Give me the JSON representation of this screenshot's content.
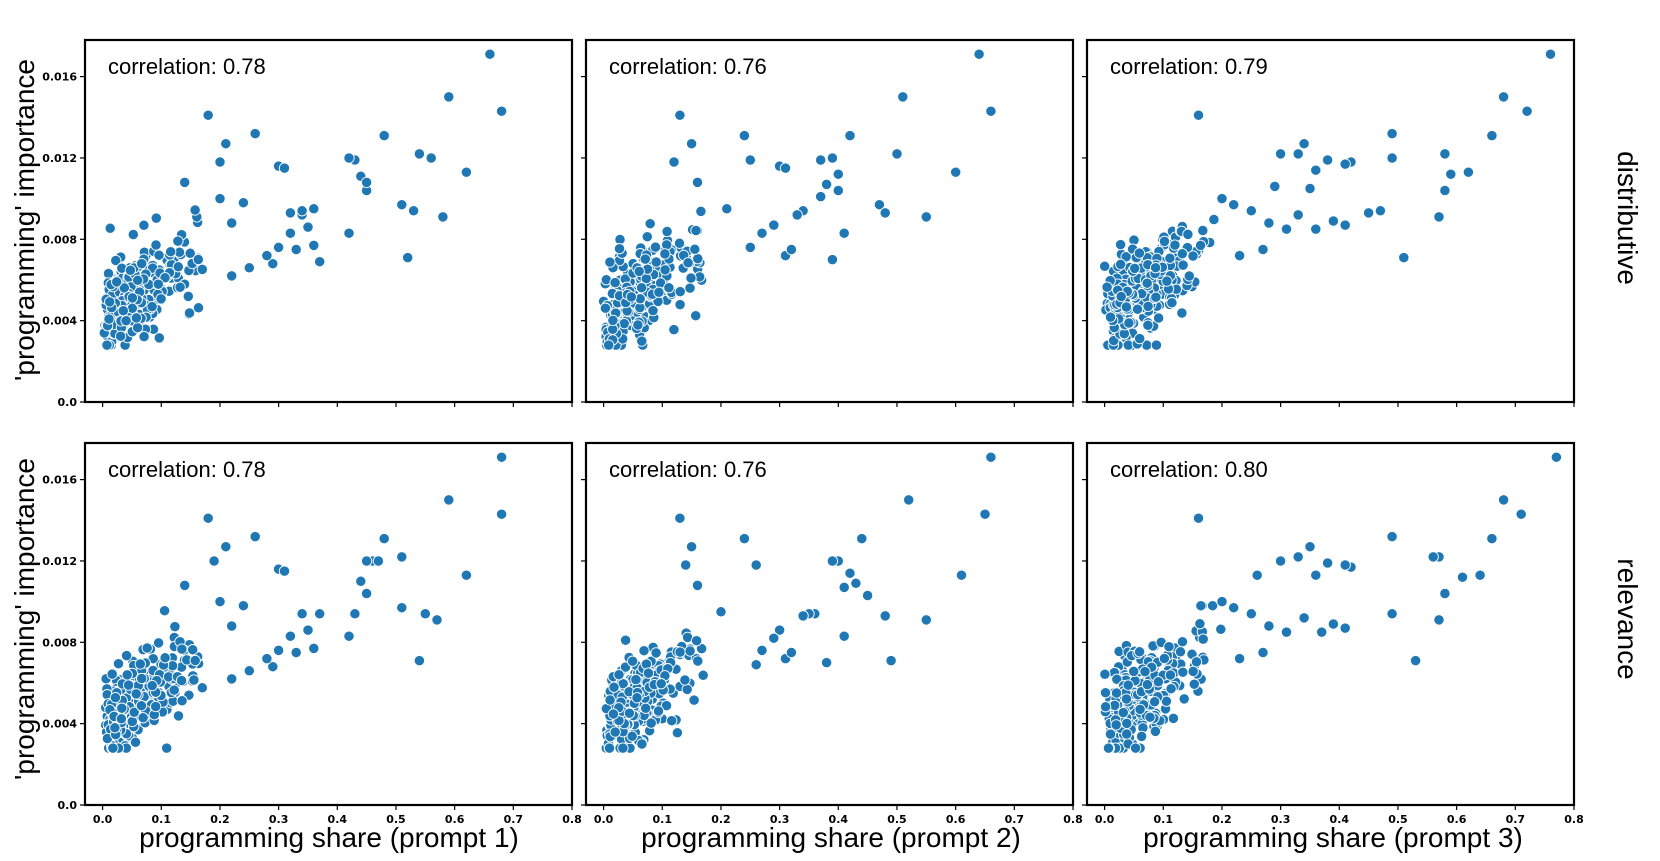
{
  "figure": {
    "ylabel": "'programming' importance",
    "xlabels": [
      "programming share (prompt 1)",
      "programming share (prompt 2)",
      "programming share (prompt 3)"
    ],
    "row_labels": [
      "distributive",
      "relevance"
    ],
    "point_color": "#1f77b4"
  },
  "chart_data": [
    {
      "type": "scatter",
      "method": "distributive",
      "prompt": "prompt 1",
      "annotation": "correlation: 0.78",
      "correlation": 0.78,
      "xlim": [
        -0.03,
        0.8
      ],
      "ylim": [
        0,
        0.0178
      ],
      "xticks": [
        0.0,
        0.1,
        0.2,
        0.3,
        0.4,
        0.5,
        0.6,
        0.7,
        0.8
      ],
      "xtick_labels": [
        "0.0",
        "0.1",
        "0.2",
        "0.3",
        "0.4",
        "0.5",
        "0.6",
        "0.7",
        "0.8"
      ],
      "yticks": [
        0.0,
        0.004,
        0.008,
        0.012,
        0.016
      ],
      "ytick_labels": [
        "0.0",
        "0.004",
        "0.008",
        "0.012",
        "0.016"
      ],
      "outliers": [
        [
          0.66,
          0.0171
        ],
        [
          0.68,
          0.0143
        ],
        [
          0.59,
          0.015
        ],
        [
          0.62,
          0.0113
        ],
        [
          0.58,
          0.0091
        ],
        [
          0.56,
          0.012
        ],
        [
          0.54,
          0.0122
        ],
        [
          0.53,
          0.0094
        ],
        [
          0.52,
          0.0071
        ],
        [
          0.51,
          0.0097
        ],
        [
          0.48,
          0.0131
        ],
        [
          0.45,
          0.0104
        ],
        [
          0.44,
          0.0111
        ],
        [
          0.43,
          0.0119
        ],
        [
          0.42,
          0.012
        ],
        [
          0.42,
          0.0083
        ],
        [
          0.45,
          0.0108
        ],
        [
          0.26,
          0.0132
        ],
        [
          0.21,
          0.0127
        ],
        [
          0.18,
          0.0141
        ],
        [
          0.2,
          0.0118
        ],
        [
          0.2,
          0.01
        ],
        [
          0.24,
          0.0098
        ],
        [
          0.14,
          0.0108
        ],
        [
          0.3,
          0.0116
        ],
        [
          0.31,
          0.0115
        ],
        [
          0.37,
          0.0069
        ],
        [
          0.34,
          0.0092
        ],
        [
          0.35,
          0.0086
        ],
        [
          0.32,
          0.0083
        ],
        [
          0.36,
          0.0077
        ],
        [
          0.33,
          0.0075
        ],
        [
          0.34,
          0.0094
        ],
        [
          0.36,
          0.0095
        ],
        [
          0.32,
          0.0093
        ],
        [
          0.29,
          0.0068
        ],
        [
          0.28,
          0.0072
        ],
        [
          0.3,
          0.0076
        ],
        [
          0.25,
          0.0066
        ],
        [
          0.22,
          0.0088
        ],
        [
          0.22,
          0.0062
        ]
      ],
      "cluster_count": 280,
      "cluster_seed": 11
    },
    {
      "type": "scatter",
      "method": "distributive",
      "prompt": "prompt 2",
      "annotation": "correlation: 0.76",
      "correlation": 0.76,
      "xlim": [
        -0.03,
        0.8
      ],
      "ylim": [
        0,
        0.0178
      ],
      "xticks": [
        0.0,
        0.1,
        0.2,
        0.3,
        0.4,
        0.5,
        0.6,
        0.7,
        0.8
      ],
      "xtick_labels": [
        "0.0",
        "0.1",
        "0.2",
        "0.3",
        "0.4",
        "0.5",
        "0.6",
        "0.7",
        "0.8"
      ],
      "yticks": [
        0.0,
        0.004,
        0.008,
        0.012,
        0.016
      ],
      "outliers": [
        [
          0.64,
          0.0171
        ],
        [
          0.66,
          0.0143
        ],
        [
          0.51,
          0.015
        ],
        [
          0.5,
          0.0122
        ],
        [
          0.6,
          0.0113
        ],
        [
          0.55,
          0.0091
        ],
        [
          0.47,
          0.0097
        ],
        [
          0.48,
          0.0093
        ],
        [
          0.42,
          0.0131
        ],
        [
          0.39,
          0.012
        ],
        [
          0.4,
          0.0112
        ],
        [
          0.4,
          0.0104
        ],
        [
          0.38,
          0.0107
        ],
        [
          0.37,
          0.0101
        ],
        [
          0.37,
          0.0119
        ],
        [
          0.41,
          0.0083
        ],
        [
          0.39,
          0.007
        ],
        [
          0.34,
          0.0094
        ],
        [
          0.3,
          0.0116
        ],
        [
          0.31,
          0.0115
        ],
        [
          0.24,
          0.0131
        ],
        [
          0.25,
          0.0119
        ],
        [
          0.13,
          0.0141
        ],
        [
          0.15,
          0.0127
        ],
        [
          0.12,
          0.0118
        ],
        [
          0.21,
          0.0095
        ],
        [
          0.16,
          0.0108
        ],
        [
          0.33,
          0.0092
        ],
        [
          0.29,
          0.0087
        ],
        [
          0.27,
          0.0083
        ],
        [
          0.25,
          0.0076
        ],
        [
          0.31,
          0.0072
        ],
        [
          0.32,
          0.0075
        ]
      ],
      "cluster_count": 280,
      "cluster_seed": 22
    },
    {
      "type": "scatter",
      "method": "distributive",
      "prompt": "prompt 3",
      "annotation": "correlation: 0.79",
      "correlation": 0.79,
      "xlim": [
        -0.03,
        0.8
      ],
      "ylim": [
        0,
        0.0178
      ],
      "xticks": [
        0.0,
        0.1,
        0.2,
        0.3,
        0.4,
        0.5,
        0.6,
        0.7,
        0.8
      ],
      "xtick_labels": [
        "0.0",
        "0.1",
        "0.2",
        "0.3",
        "0.4",
        "0.5",
        "0.6",
        "0.7",
        "0.8"
      ],
      "yticks": [
        0.0,
        0.004,
        0.008,
        0.012,
        0.016
      ],
      "outliers": [
        [
          0.76,
          0.0171
        ],
        [
          0.72,
          0.0143
        ],
        [
          0.68,
          0.015
        ],
        [
          0.66,
          0.0131
        ],
        [
          0.62,
          0.0113
        ],
        [
          0.59,
          0.0112
        ],
        [
          0.58,
          0.0122
        ],
        [
          0.58,
          0.0104
        ],
        [
          0.57,
          0.0091
        ],
        [
          0.51,
          0.0071
        ],
        [
          0.49,
          0.0132
        ],
        [
          0.49,
          0.012
        ],
        [
          0.47,
          0.0094
        ],
        [
          0.45,
          0.0093
        ],
        [
          0.42,
          0.0118
        ],
        [
          0.41,
          0.0117
        ],
        [
          0.38,
          0.0119
        ],
        [
          0.36,
          0.0114
        ],
        [
          0.34,
          0.0127
        ],
        [
          0.35,
          0.0105
        ],
        [
          0.33,
          0.0122
        ],
        [
          0.3,
          0.0122
        ],
        [
          0.29,
          0.0106
        ],
        [
          0.16,
          0.0141
        ],
        [
          0.2,
          0.01
        ],
        [
          0.22,
          0.0097
        ],
        [
          0.25,
          0.0094
        ],
        [
          0.28,
          0.0088
        ],
        [
          0.31,
          0.0085
        ],
        [
          0.33,
          0.0092
        ],
        [
          0.36,
          0.0085
        ],
        [
          0.39,
          0.0089
        ],
        [
          0.41,
          0.0087
        ],
        [
          0.27,
          0.0075
        ],
        [
          0.23,
          0.0072
        ]
      ],
      "cluster_count": 280,
      "cluster_seed": 33
    },
    {
      "type": "scatter",
      "method": "relevance",
      "prompt": "prompt 1",
      "annotation": "correlation: 0.78",
      "correlation": 0.78,
      "xlim": [
        -0.03,
        0.8
      ],
      "ylim": [
        0,
        0.0178
      ],
      "xticks": [
        0.0,
        0.1,
        0.2,
        0.3,
        0.4,
        0.5,
        0.6,
        0.7,
        0.8
      ],
      "xtick_labels": [
        "0.0",
        "0.1",
        "0.2",
        "0.3",
        "0.4",
        "0.5",
        "0.6",
        "0.7",
        "0.8"
      ],
      "yticks": [
        0.0,
        0.004,
        0.008,
        0.012,
        0.016
      ],
      "ytick_labels": [
        "0.0",
        "0.004",
        "0.008",
        "0.012",
        "0.016"
      ],
      "outliers": [
        [
          0.68,
          0.0171
        ],
        [
          0.68,
          0.0143
        ],
        [
          0.59,
          0.015
        ],
        [
          0.62,
          0.0113
        ],
        [
          0.57,
          0.0091
        ],
        [
          0.55,
          0.0094
        ],
        [
          0.54,
          0.0071
        ],
        [
          0.51,
          0.0122
        ],
        [
          0.51,
          0.0097
        ],
        [
          0.48,
          0.0131
        ],
        [
          0.46,
          0.012
        ],
        [
          0.47,
          0.012
        ],
        [
          0.45,
          0.012
        ],
        [
          0.44,
          0.011
        ],
        [
          0.45,
          0.0104
        ],
        [
          0.43,
          0.0094
        ],
        [
          0.42,
          0.0083
        ],
        [
          0.26,
          0.0132
        ],
        [
          0.21,
          0.0127
        ],
        [
          0.18,
          0.0141
        ],
        [
          0.19,
          0.012
        ],
        [
          0.2,
          0.01
        ],
        [
          0.24,
          0.0098
        ],
        [
          0.14,
          0.0108
        ],
        [
          0.3,
          0.0116
        ],
        [
          0.31,
          0.0115
        ],
        [
          0.37,
          0.0094
        ],
        [
          0.35,
          0.0086
        ],
        [
          0.34,
          0.0094
        ],
        [
          0.32,
          0.0083
        ],
        [
          0.36,
          0.0077
        ],
        [
          0.33,
          0.0075
        ],
        [
          0.29,
          0.0068
        ],
        [
          0.28,
          0.0072
        ],
        [
          0.3,
          0.0076
        ],
        [
          0.25,
          0.0066
        ],
        [
          0.22,
          0.0088
        ],
        [
          0.22,
          0.0062
        ]
      ],
      "cluster_count": 280,
      "cluster_seed": 44
    },
    {
      "type": "scatter",
      "method": "relevance",
      "prompt": "prompt 2",
      "annotation": "correlation: 0.76",
      "correlation": 0.76,
      "xlim": [
        -0.03,
        0.8
      ],
      "ylim": [
        0,
        0.0178
      ],
      "xticks": [
        0.0,
        0.1,
        0.2,
        0.3,
        0.4,
        0.5,
        0.6,
        0.7,
        0.8
      ],
      "xtick_labels": [
        "0.0",
        "0.1",
        "0.2",
        "0.3",
        "0.4",
        "0.5",
        "0.6",
        "0.7",
        "0.8"
      ],
      "yticks": [
        0.0,
        0.004,
        0.008,
        0.012,
        0.016
      ],
      "outliers": [
        [
          0.66,
          0.0171
        ],
        [
          0.65,
          0.0143
        ],
        [
          0.52,
          0.015
        ],
        [
          0.61,
          0.0113
        ],
        [
          0.55,
          0.0091
        ],
        [
          0.49,
          0.0071
        ],
        [
          0.48,
          0.0093
        ],
        [
          0.44,
          0.0131
        ],
        [
          0.4,
          0.012
        ],
        [
          0.39,
          0.012
        ],
        [
          0.42,
          0.0114
        ],
        [
          0.43,
          0.0109
        ],
        [
          0.41,
          0.0107
        ],
        [
          0.45,
          0.0103
        ],
        [
          0.41,
          0.0083
        ],
        [
          0.38,
          0.007
        ],
        [
          0.36,
          0.0094
        ],
        [
          0.35,
          0.0094
        ],
        [
          0.24,
          0.0131
        ],
        [
          0.26,
          0.0118
        ],
        [
          0.13,
          0.0141
        ],
        [
          0.15,
          0.0127
        ],
        [
          0.14,
          0.0118
        ],
        [
          0.2,
          0.0095
        ],
        [
          0.16,
          0.0108
        ],
        [
          0.34,
          0.0093
        ],
        [
          0.3,
          0.0086
        ],
        [
          0.29,
          0.0082
        ],
        [
          0.27,
          0.0076
        ],
        [
          0.31,
          0.0072
        ],
        [
          0.32,
          0.0075
        ],
        [
          0.26,
          0.0069
        ]
      ],
      "cluster_count": 280,
      "cluster_seed": 55
    },
    {
      "type": "scatter",
      "method": "relevance",
      "prompt": "prompt 3",
      "annotation": "correlation: 0.80",
      "correlation": 0.8,
      "xlim": [
        -0.03,
        0.8
      ],
      "ylim": [
        0,
        0.0178
      ],
      "xticks": [
        0.0,
        0.1,
        0.2,
        0.3,
        0.4,
        0.5,
        0.6,
        0.7,
        0.8
      ],
      "xtick_labels": [
        "0.0",
        "0.1",
        "0.2",
        "0.3",
        "0.4",
        "0.5",
        "0.6",
        "0.7",
        "0.8"
      ],
      "yticks": [
        0.0,
        0.004,
        0.008,
        0.012,
        0.016
      ],
      "outliers": [
        [
          0.77,
          0.0171
        ],
        [
          0.71,
          0.0143
        ],
        [
          0.68,
          0.015
        ],
        [
          0.66,
          0.0131
        ],
        [
          0.64,
          0.0113
        ],
        [
          0.61,
          0.0112
        ],
        [
          0.58,
          0.0104
        ],
        [
          0.57,
          0.0122
        ],
        [
          0.56,
          0.0122
        ],
        [
          0.57,
          0.0091
        ],
        [
          0.53,
          0.0071
        ],
        [
          0.49,
          0.0132
        ],
        [
          0.49,
          0.0094
        ],
        [
          0.42,
          0.0117
        ],
        [
          0.41,
          0.0118
        ],
        [
          0.38,
          0.0119
        ],
        [
          0.35,
          0.0127
        ],
        [
          0.36,
          0.0113
        ],
        [
          0.33,
          0.0122
        ],
        [
          0.3,
          0.012
        ],
        [
          0.26,
          0.0113
        ],
        [
          0.16,
          0.0141
        ],
        [
          0.2,
          0.01
        ],
        [
          0.22,
          0.0097
        ],
        [
          0.25,
          0.0094
        ],
        [
          0.28,
          0.0088
        ],
        [
          0.31,
          0.0085
        ],
        [
          0.34,
          0.0092
        ],
        [
          0.37,
          0.0085
        ],
        [
          0.39,
          0.0089
        ],
        [
          0.41,
          0.0087
        ],
        [
          0.27,
          0.0075
        ],
        [
          0.23,
          0.0072
        ]
      ],
      "cluster_count": 280,
      "cluster_seed": 66
    }
  ]
}
